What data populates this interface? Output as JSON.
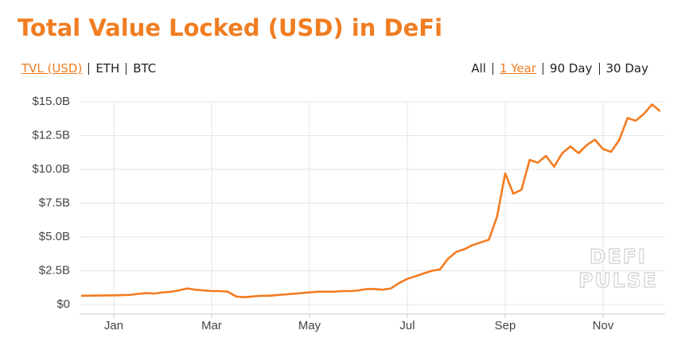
{
  "chart_data": {
    "type": "line",
    "title": "Total Value Locked (USD) in DeFi",
    "unit_options": [
      "TVL (USD)",
      "ETH",
      "BTC"
    ],
    "unit_selected": 0,
    "range_options": [
      "All",
      "1 Year",
      "90 Day",
      "30 Day"
    ],
    "range_selected": 1,
    "watermark": [
      "DEFI",
      "PULSE"
    ],
    "color": "#f47b20",
    "grid": true,
    "categories": [
      null,
      null,
      null,
      null,
      "Jan",
      null,
      null,
      null,
      null,
      null,
      null,
      null,
      null,
      null,
      null,
      null,
      "Mar",
      null,
      null,
      null,
      null,
      null,
      null,
      null,
      null,
      null,
      null,
      null,
      "May",
      null,
      null,
      null,
      null,
      null,
      null,
      null,
      null,
      null,
      null,
      null,
      "Jul",
      null,
      null,
      null,
      null,
      null,
      null,
      null,
      null,
      null,
      null,
      null,
      "Sep",
      null,
      null,
      null,
      null,
      null,
      null,
      null,
      null,
      null,
      null,
      null,
      "Nov",
      null,
      null,
      null,
      null,
      null,
      null,
      null
    ],
    "values": [
      0.65,
      0.66,
      0.67,
      0.68,
      0.68,
      0.7,
      0.72,
      0.8,
      0.85,
      0.82,
      0.9,
      0.95,
      1.05,
      1.2,
      1.1,
      1.05,
      1.0,
      1.0,
      0.95,
      0.6,
      0.55,
      0.6,
      0.65,
      0.65,
      0.7,
      0.75,
      0.8,
      0.85,
      0.9,
      0.95,
      0.95,
      0.95,
      1.0,
      1.0,
      1.05,
      1.15,
      1.15,
      1.1,
      1.2,
      1.6,
      1.9,
      2.1,
      2.3,
      2.5,
      2.6,
      3.4,
      3.9,
      4.1,
      4.4,
      4.6,
      4.8,
      6.5,
      9.7,
      8.2,
      8.5,
      10.7,
      10.5,
      11.0,
      10.2,
      11.2,
      11.7,
      11.2,
      11.8,
      12.2,
      11.5,
      11.3,
      12.2,
      13.8,
      13.6,
      14.1,
      14.8,
      14.3
    ],
    "ylim": [
      0,
      15
    ],
    "yticks": [
      {
        "value": 0,
        "label": "$0"
      },
      {
        "value": 2.5,
        "label": "$2.5B"
      },
      {
        "value": 5,
        "label": "$5.0B"
      },
      {
        "value": 7.5,
        "label": "$7.5B"
      },
      {
        "value": 10,
        "label": "$10.0B"
      },
      {
        "value": 12.5,
        "label": "$12.5B"
      },
      {
        "value": 15,
        "label": "$15.0B"
      }
    ]
  }
}
